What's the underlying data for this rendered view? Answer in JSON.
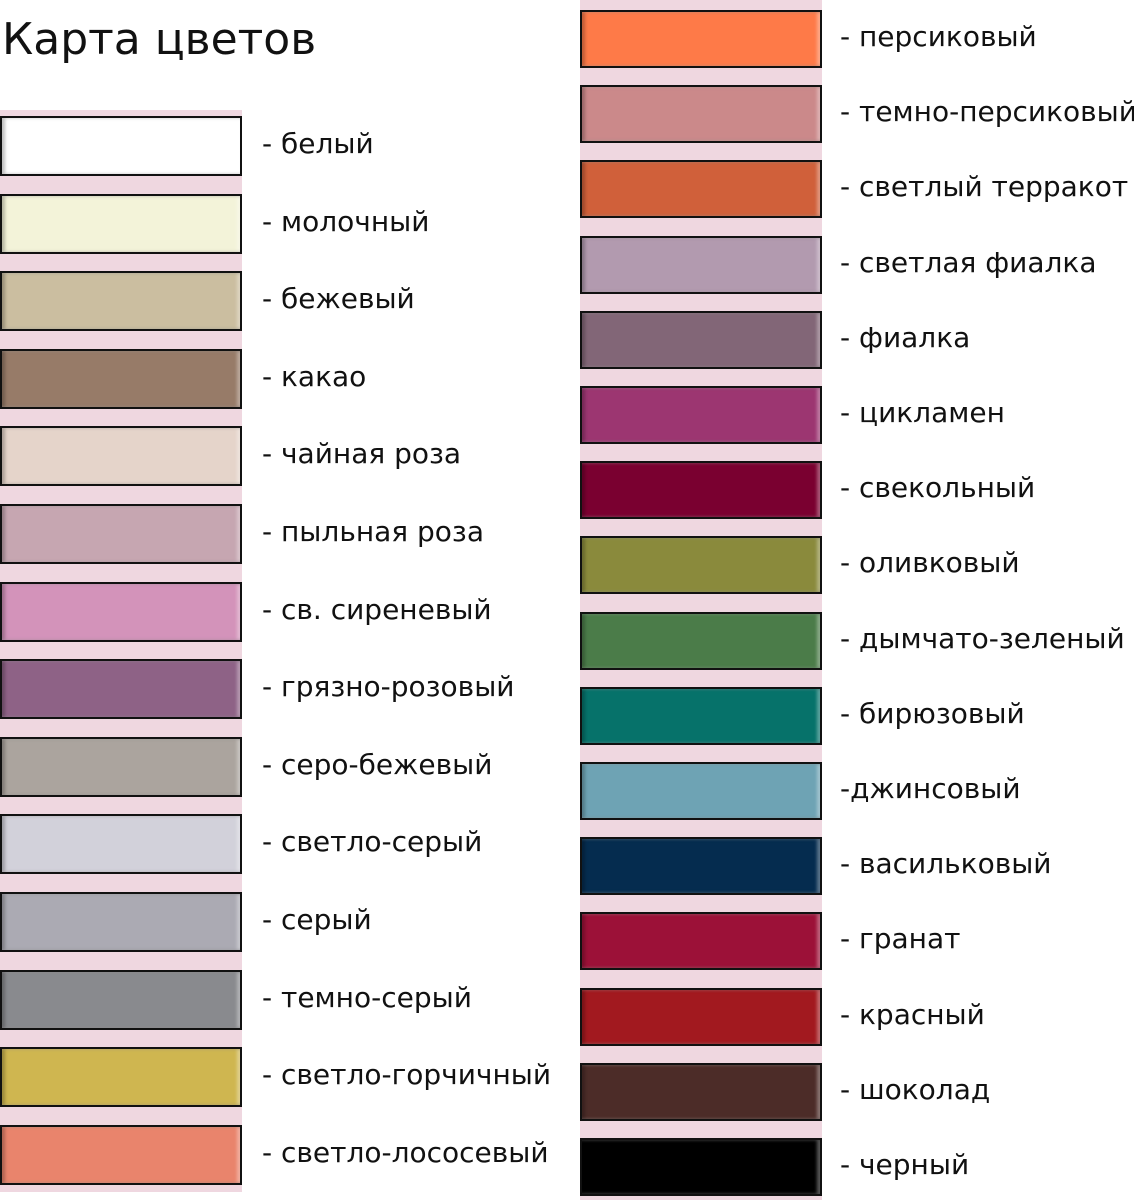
{
  "title": "Карта цветов",
  "strip_color": "#efd7e0",
  "left": [
    {
      "label": "- белый",
      "color": "#ffffff"
    },
    {
      "label": "- молочный",
      "color": "#f3f3d9"
    },
    {
      "label": "- бежевый",
      "color": "#cbbea0"
    },
    {
      "label": "- какао",
      "color": "#977b68"
    },
    {
      "label": "- чайная роза",
      "color": "#e5d4ca"
    },
    {
      "label": "- пыльная роза",
      "color": "#c6a6b1"
    },
    {
      "label": "- св. сиреневый",
      "color": "#d393ba"
    },
    {
      "label": "- грязно-розовый",
      "color": "#8e6286"
    },
    {
      "label": "- серо-бежевый",
      "color": "#aba49e"
    },
    {
      "label": "- светло-серый",
      "color": "#d2d1da"
    },
    {
      "label": "- серый",
      "color": "#abaab3"
    },
    {
      "label": "- темно-серый",
      "color": "#898a8e"
    },
    {
      "label": "- светло-горчичный",
      "color": "#cfb650"
    },
    {
      "label": "- светло-лососевый",
      "color": "#e9846c"
    }
  ],
  "right": [
    {
      "label": "- персиковый",
      "color": "#fe7a48"
    },
    {
      "label": "- темно-персиковый",
      "color": "#cb898a"
    },
    {
      "label": "- светлый терракот",
      "color": "#d0603a"
    },
    {
      "label": "- светлая фиалка",
      "color": "#b29aaf"
    },
    {
      "label": "- фиалка",
      "color": "#826677"
    },
    {
      "label": "- цикламен",
      "color": "#9c3671"
    },
    {
      "label": "- свекольный",
      "color": "#7a0030"
    },
    {
      "label": "- оливковый",
      "color": "#8a8a3c"
    },
    {
      "label": "- дымчато-зеленый",
      "color": "#4b7c49"
    },
    {
      "label": "- бирюзовый",
      "color": "#06726a"
    },
    {
      "label": "-джинсовый",
      "color": "#6ea3b4"
    },
    {
      "label": "- васильковый",
      "color": "#052c4f"
    },
    {
      "label": "- гранат",
      "color": "#9c1138"
    },
    {
      "label": "- красный",
      "color": "#a2191f"
    },
    {
      "label": "- шоколад",
      "color": "#4c2c28"
    },
    {
      "label": "- черный",
      "color": "#000000"
    }
  ]
}
